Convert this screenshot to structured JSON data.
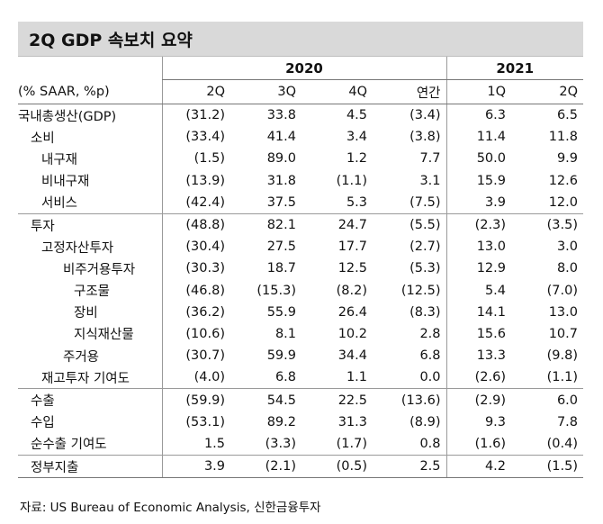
{
  "title": "2Q GDP 속보치 요약",
  "years": {
    "y2020": "2020",
    "y2021": "2021"
  },
  "header": {
    "unit": "(% SAAR, %p)",
    "cols": [
      "2Q",
      "3Q",
      "4Q",
      "연간",
      "1Q",
      "2Q"
    ]
  },
  "rows": [
    {
      "label": "국내총생산(GDP)",
      "indent": 0,
      "values": [
        "(31.2)",
        "33.8",
        "4.5",
        "(3.4)",
        "6.3",
        "6.5"
      ]
    },
    {
      "label": "소비",
      "indent": 1,
      "values": [
        "(33.4)",
        "41.4",
        "3.4",
        "(3.8)",
        "11.4",
        "11.8"
      ]
    },
    {
      "label": "내구재",
      "indent": 2,
      "values": [
        "(1.5)",
        "89.0",
        "1.2",
        "7.7",
        "50.0",
        "9.9"
      ]
    },
    {
      "label": "비내구재",
      "indent": 2,
      "values": [
        "(13.9)",
        "31.8",
        "(1.1)",
        "3.1",
        "15.9",
        "12.6"
      ]
    },
    {
      "label": "서비스",
      "indent": 2,
      "values": [
        "(42.4)",
        "37.5",
        "5.3",
        "(7.5)",
        "3.9",
        "12.0"
      ]
    },
    {
      "label": "투자",
      "indent": 1,
      "values": [
        "(48.8)",
        "82.1",
        "24.7",
        "(5.5)",
        "(2.3)",
        "(3.5)"
      ]
    },
    {
      "label": "고정자산투자",
      "indent": 2,
      "values": [
        "(30.4)",
        "27.5",
        "17.7",
        "(2.7)",
        "13.0",
        "3.0"
      ]
    },
    {
      "label": "비주거용투자",
      "indent": 3,
      "values": [
        "(30.3)",
        "18.7",
        "12.5",
        "(5.3)",
        "12.9",
        "8.0"
      ]
    },
    {
      "label": "구조물",
      "indent": 4,
      "values": [
        "(46.8)",
        "(15.3)",
        "(8.2)",
        "(12.5)",
        "5.4",
        "(7.0)"
      ]
    },
    {
      "label": "장비",
      "indent": 4,
      "values": [
        "(36.2)",
        "55.9",
        "26.4",
        "(8.3)",
        "14.1",
        "13.0"
      ]
    },
    {
      "label": "지식재산물",
      "indent": 4,
      "values": [
        "(10.6)",
        "8.1",
        "10.2",
        "2.8",
        "15.6",
        "10.7"
      ]
    },
    {
      "label": "주거용",
      "indent": 3,
      "values": [
        "(30.7)",
        "59.9",
        "34.4",
        "6.8",
        "13.3",
        "(9.8)"
      ]
    },
    {
      "label": "재고투자 기여도",
      "indent": 2,
      "values": [
        "(4.0)",
        "6.8",
        "1.1",
        "0.0",
        "(2.6)",
        "(1.1)"
      ]
    },
    {
      "label": "수출",
      "indent": 1,
      "values": [
        "(59.9)",
        "54.5",
        "22.5",
        "(13.6)",
        "(2.9)",
        "6.0"
      ]
    },
    {
      "label": "수입",
      "indent": 1,
      "values": [
        "(53.1)",
        "89.2",
        "31.3",
        "(8.9)",
        "9.3",
        "7.8"
      ]
    },
    {
      "label": "순수출 기여도",
      "indent": 1,
      "values": [
        "1.5",
        "(3.3)",
        "(1.7)",
        "0.8",
        "(1.6)",
        "(0.4)"
      ]
    },
    {
      "label": "정부지출",
      "indent": 1,
      "values": [
        "3.9",
        "(2.1)",
        "(0.5)",
        "2.5",
        "4.2",
        "(1.5)"
      ]
    }
  ],
  "group_starts": [
    5,
    13,
    16
  ],
  "source": "자료: US Bureau of Economic Analysis, 신한금융투자"
}
